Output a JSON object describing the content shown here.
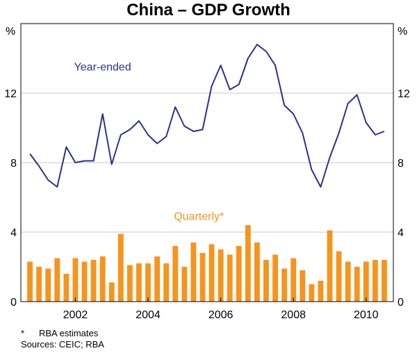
{
  "chart_data": {
    "type": "bar+line",
    "title": "China – GDP Growth",
    "y_unit_left": "%",
    "y_unit_right": "%",
    "ylim": [
      0,
      16
    ],
    "yticks": [
      0,
      4,
      8,
      12
    ],
    "x_tick_labels": [
      "2002",
      "2004",
      "2006",
      "2008",
      "2010"
    ],
    "x_tick_values": [
      2002,
      2004,
      2006,
      2008,
      2010
    ],
    "x_range": [
      2000.5,
      2010.75
    ],
    "series": [
      {
        "name": "Year-ended",
        "label": "Year-ended",
        "type": "line",
        "color": "#2b2f8f",
        "x": [
          2000.75,
          2001.0,
          2001.25,
          2001.5,
          2001.75,
          2002.0,
          2002.25,
          2002.5,
          2002.75,
          2003.0,
          2003.25,
          2003.5,
          2003.75,
          2004.0,
          2004.25,
          2004.5,
          2004.75,
          2005.0,
          2005.25,
          2005.5,
          2005.75,
          2006.0,
          2006.25,
          2006.5,
          2006.75,
          2007.0,
          2007.25,
          2007.5,
          2007.75,
          2008.0,
          2008.25,
          2008.5,
          2008.75,
          2009.0,
          2009.25,
          2009.5,
          2009.75,
          2010.0,
          2010.25,
          2010.5
        ],
        "values": [
          8.5,
          7.8,
          7.0,
          6.6,
          8.9,
          8.0,
          8.1,
          8.1,
          10.8,
          7.9,
          9.6,
          9.9,
          10.4,
          9.6,
          9.1,
          9.5,
          11.2,
          10.1,
          9.8,
          9.9,
          12.4,
          13.6,
          12.2,
          12.5,
          14.0,
          14.8,
          14.4,
          13.6,
          11.3,
          10.8,
          9.7,
          7.6,
          6.6,
          8.3,
          9.7,
          11.4,
          11.9,
          10.3,
          9.6,
          9.8
        ]
      },
      {
        "name": "Quarterly*",
        "label": "Quarterly*",
        "type": "bar",
        "color": "#f7941d",
        "x": [
          2000.75,
          2001.0,
          2001.25,
          2001.5,
          2001.75,
          2002.0,
          2002.25,
          2002.5,
          2002.75,
          2003.0,
          2003.25,
          2003.5,
          2003.75,
          2004.0,
          2004.25,
          2004.5,
          2004.75,
          2005.0,
          2005.25,
          2005.5,
          2005.75,
          2006.0,
          2006.25,
          2006.5,
          2006.75,
          2007.0,
          2007.25,
          2007.5,
          2007.75,
          2008.0,
          2008.25,
          2008.5,
          2008.75,
          2009.0,
          2009.25,
          2009.5,
          2009.75,
          2010.0,
          2010.25,
          2010.5
        ],
        "values": [
          2.3,
          2.0,
          1.9,
          2.5,
          1.6,
          2.5,
          2.3,
          2.4,
          2.6,
          1.1,
          3.9,
          2.1,
          2.2,
          2.2,
          2.6,
          2.2,
          3.2,
          2.0,
          3.4,
          2.8,
          3.3,
          3.0,
          2.7,
          3.2,
          4.4,
          3.4,
          2.4,
          2.7,
          1.9,
          2.5,
          1.8,
          1.0,
          1.2,
          4.1,
          2.9,
          2.3,
          2.0,
          2.3,
          2.4,
          2.4
        ]
      }
    ]
  },
  "footnote": {
    "star": "*",
    "text": "RBA estimates"
  },
  "sources": "Sources: CEIC; RBA"
}
